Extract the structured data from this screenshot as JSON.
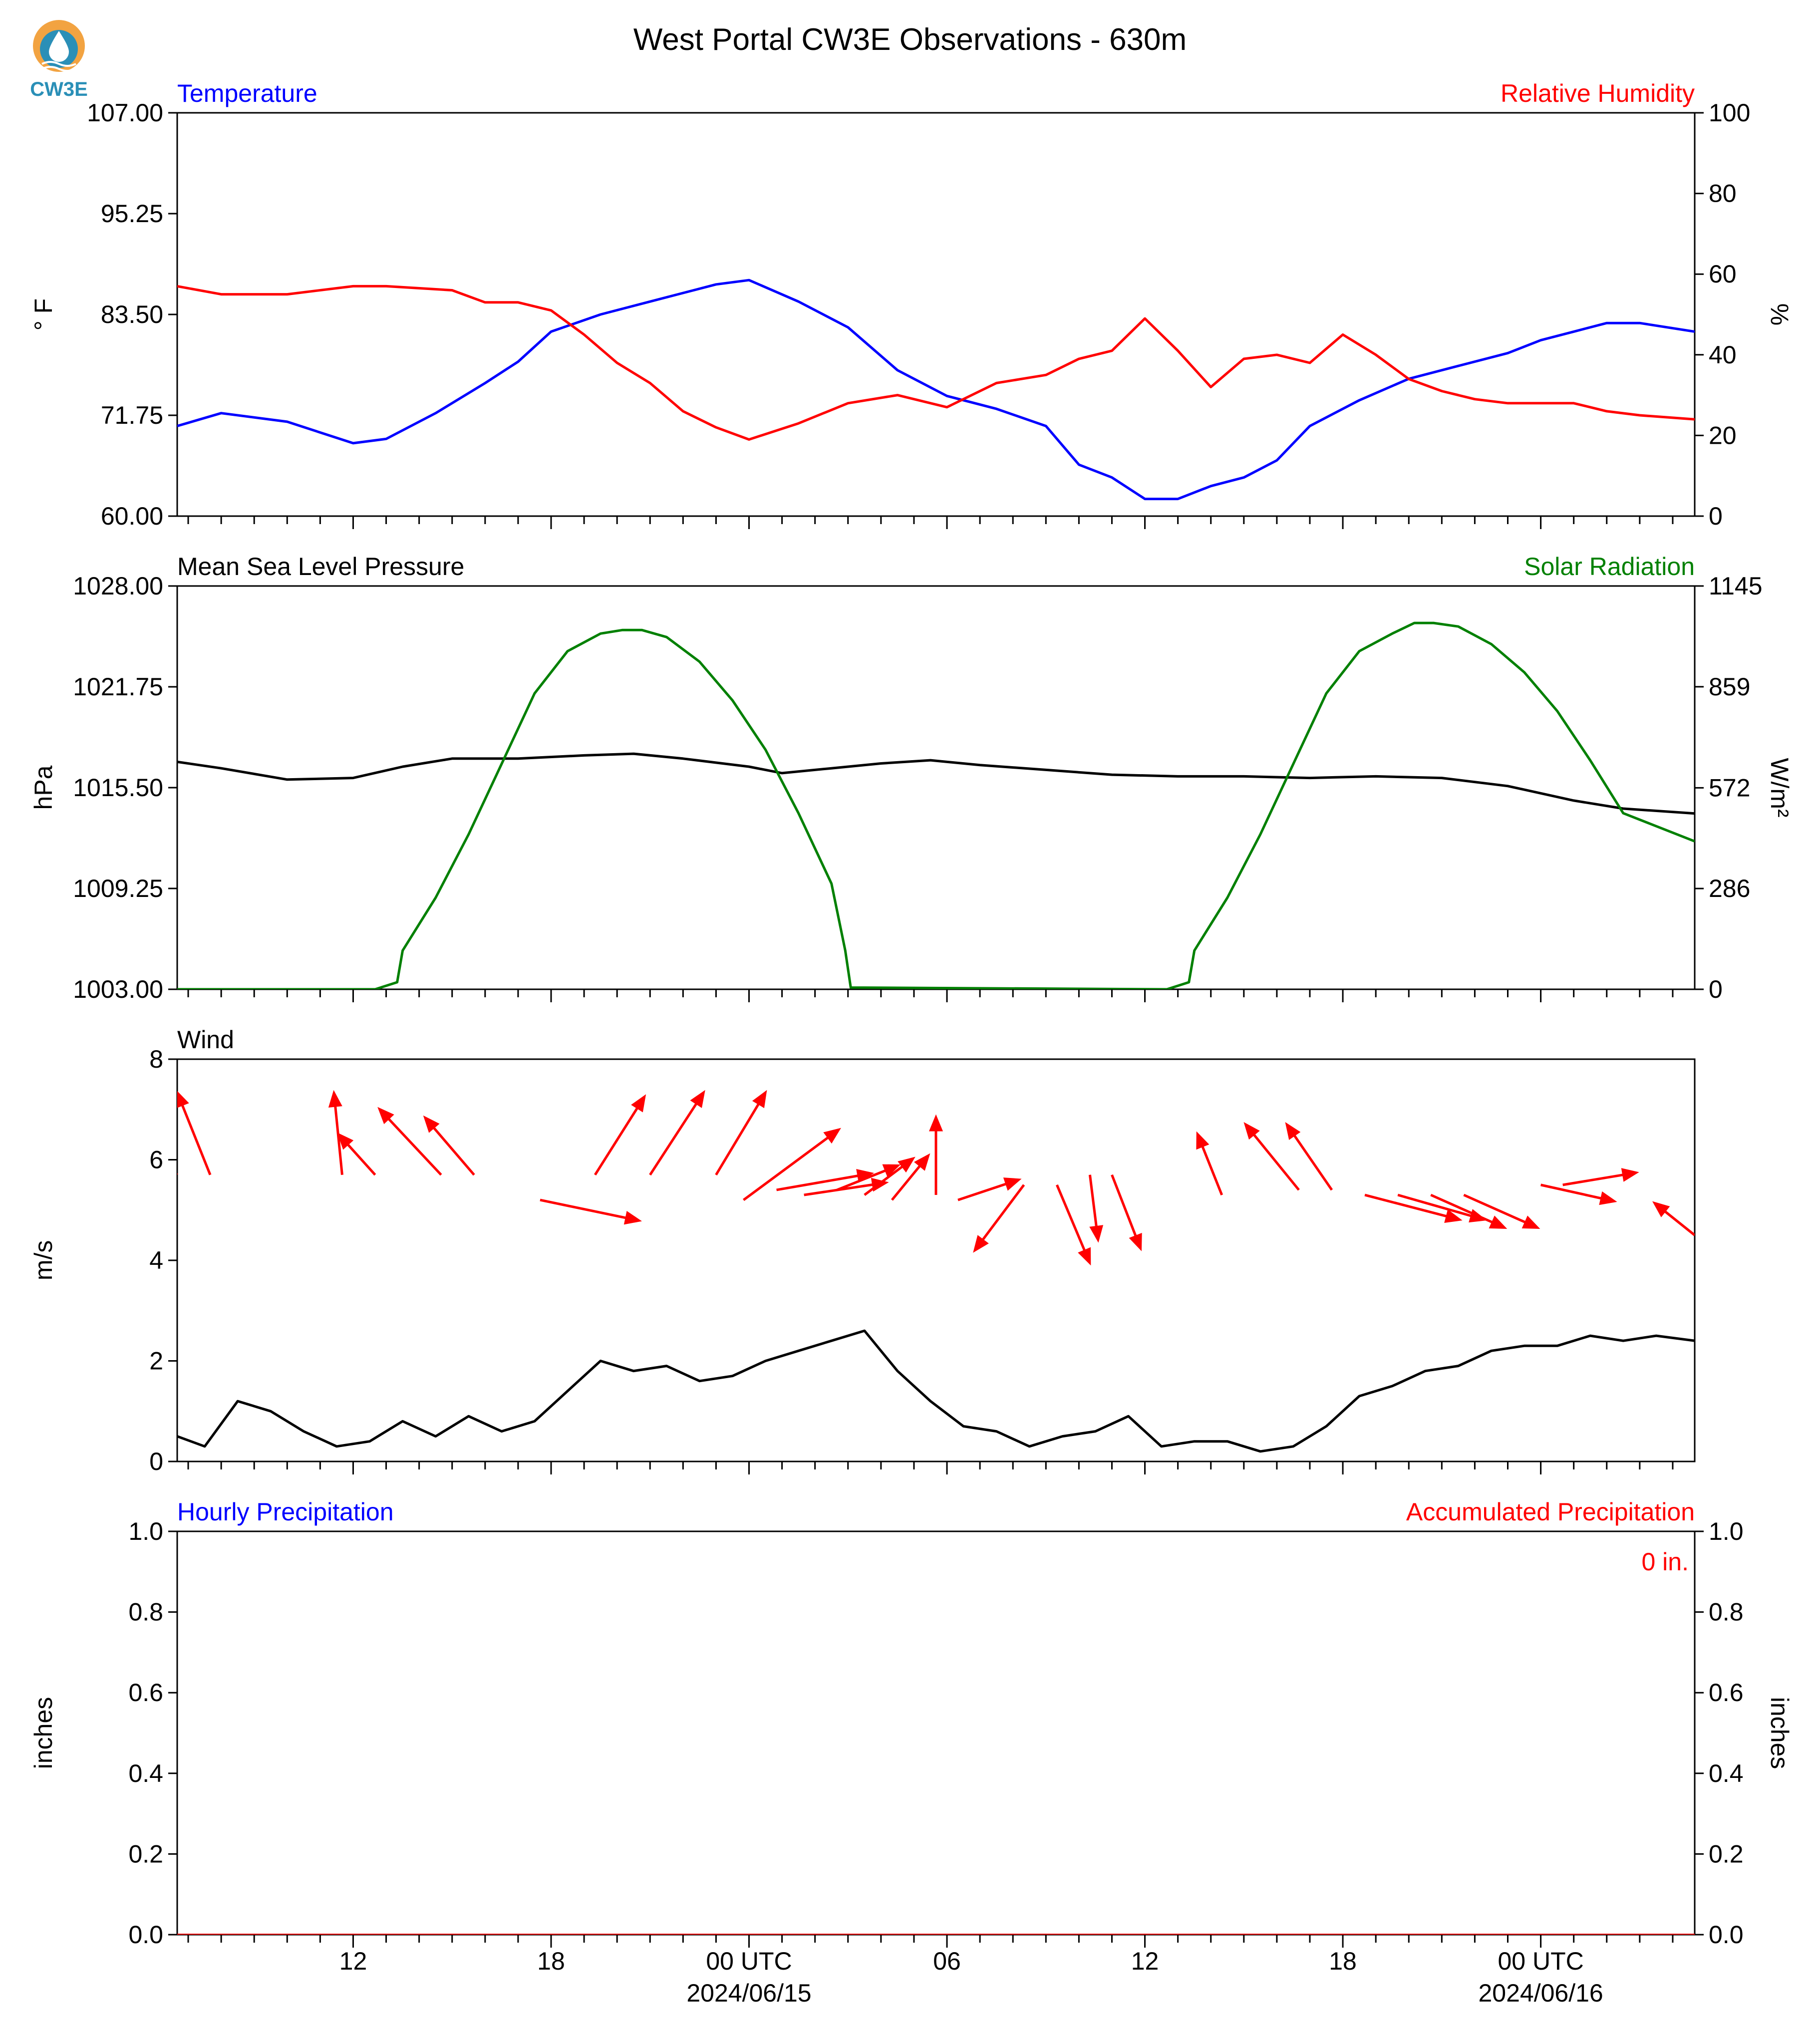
{
  "title": "West Portal CW3E Observations - 630m",
  "logo": {
    "label": "CW3E",
    "icon": "water-drop-sun-icon",
    "colors": [
      "#f2a341",
      "#2a8fb7"
    ]
  },
  "colors": {
    "temperature": "#0000ff",
    "humidity": "#ff0000",
    "pressure": "#000000",
    "solar": "#008000",
    "wind_arrow": "#ff0000",
    "wind_speed": "#000000",
    "hourly_precip": "#0000ff",
    "accum_precip": "#ff0000"
  },
  "x_axis": {
    "start": "2024-06-14T06:40Z",
    "end": "2024-06-16T04:40Z",
    "major_ticks": [
      {
        "t": "2024-06-14T12:00Z",
        "label": "12",
        "date": ""
      },
      {
        "t": "2024-06-14T18:00Z",
        "label": "18",
        "date": ""
      },
      {
        "t": "2024-06-15T00:00Z",
        "label": "00 UTC",
        "date": "2024/06/15"
      },
      {
        "t": "2024-06-15T06:00Z",
        "label": "06",
        "date": ""
      },
      {
        "t": "2024-06-15T12:00Z",
        "label": "12",
        "date": ""
      },
      {
        "t": "2024-06-15T18:00Z",
        "label": "18",
        "date": ""
      },
      {
        "t": "2024-06-16T00:00Z",
        "label": "00 UTC",
        "date": "2024/06/16"
      }
    ]
  },
  "chart_data": [
    {
      "type": "line",
      "panel": "temperature-humidity",
      "left_title": "Temperature",
      "right_title": "Relative Humidity",
      "ylabel": "° F",
      "ylabel_right": "%",
      "ylim": [
        60.0,
        107.0
      ],
      "ylim_right": [
        0,
        100
      ],
      "yticks": [
        "60.00",
        "71.75",
        "83.50",
        "95.25",
        "107.00"
      ],
      "yticks_right": [
        "0",
        "20",
        "40",
        "60",
        "80",
        "100"
      ],
      "series": [
        {
          "name": "Temperature",
          "axis": "left",
          "color": "#0000ff",
          "x": [
            "2024-06-14T06:40Z",
            "2024-06-14T08:00Z",
            "2024-06-14T10:00Z",
            "2024-06-14T12:00Z",
            "2024-06-14T13:00Z",
            "2024-06-14T14:30Z",
            "2024-06-14T16:00Z",
            "2024-06-14T17:00Z",
            "2024-06-14T18:00Z",
            "2024-06-14T19:30Z",
            "2024-06-14T21:00Z",
            "2024-06-14T22:00Z",
            "2024-06-14T23:00Z",
            "2024-06-15T00:00Z",
            "2024-06-15T01:30Z",
            "2024-06-15T03:00Z",
            "2024-06-15T04:30Z",
            "2024-06-15T06:00Z",
            "2024-06-15T07:30Z",
            "2024-06-15T09:00Z",
            "2024-06-15T10:00Z",
            "2024-06-15T11:00Z",
            "2024-06-15T12:00Z",
            "2024-06-15T13:00Z",
            "2024-06-15T14:00Z",
            "2024-06-15T15:00Z",
            "2024-06-15T16:00Z",
            "2024-06-15T17:00Z",
            "2024-06-15T18:30Z",
            "2024-06-15T20:00Z",
            "2024-06-15T21:30Z",
            "2024-06-15T23:00Z",
            "2024-06-16T00:00Z",
            "2024-06-16T01:00Z",
            "2024-06-16T02:00Z",
            "2024-06-16T03:00Z",
            "2024-06-16T04:40Z"
          ],
          "values": [
            70.5,
            72,
            71,
            68.5,
            69,
            72,
            75.5,
            78,
            81.5,
            83.5,
            85,
            86,
            87,
            87.5,
            85,
            82,
            77,
            74,
            72.5,
            70.5,
            66,
            64.5,
            62,
            62,
            63.5,
            64.5,
            66.5,
            70.5,
            73.5,
            76,
            77.5,
            79,
            80.5,
            81.5,
            82.5,
            82.5,
            81.5
          ]
        },
        {
          "name": "Relative Humidity",
          "axis": "right",
          "color": "#ff0000",
          "x": [
            "2024-06-14T06:40Z",
            "2024-06-14T08:00Z",
            "2024-06-14T10:00Z",
            "2024-06-14T12:00Z",
            "2024-06-14T13:00Z",
            "2024-06-14T15:00Z",
            "2024-06-14T16:00Z",
            "2024-06-14T17:00Z",
            "2024-06-14T18:00Z",
            "2024-06-14T19:00Z",
            "2024-06-14T20:00Z",
            "2024-06-14T21:00Z",
            "2024-06-14T22:00Z",
            "2024-06-14T23:00Z",
            "2024-06-15T00:00Z",
            "2024-06-15T01:30Z",
            "2024-06-15T03:00Z",
            "2024-06-15T04:30Z",
            "2024-06-15T06:00Z",
            "2024-06-15T07:30Z",
            "2024-06-15T09:00Z",
            "2024-06-15T10:00Z",
            "2024-06-15T11:00Z",
            "2024-06-15T12:00Z",
            "2024-06-15T13:00Z",
            "2024-06-15T14:00Z",
            "2024-06-15T15:00Z",
            "2024-06-15T16:00Z",
            "2024-06-15T17:00Z",
            "2024-06-15T18:00Z",
            "2024-06-15T19:00Z",
            "2024-06-15T20:00Z",
            "2024-06-15T21:00Z",
            "2024-06-15T22:00Z",
            "2024-06-15T23:00Z",
            "2024-06-16T00:00Z",
            "2024-06-16T01:00Z",
            "2024-06-16T02:00Z",
            "2024-06-16T03:00Z",
            "2024-06-16T04:40Z"
          ],
          "values": [
            57,
            55,
            55,
            57,
            57,
            56,
            53,
            53,
            51,
            45,
            38,
            33,
            26,
            22,
            19,
            23,
            28,
            30,
            27,
            33,
            35,
            39,
            41,
            49,
            41,
            32,
            39,
            40,
            38,
            45,
            40,
            34,
            31,
            29,
            28,
            28,
            28,
            26,
            25,
            24
          ]
        }
      ]
    },
    {
      "type": "line",
      "panel": "pressure-solar",
      "left_title": "Mean Sea Level Pressure",
      "right_title": "Solar Radiation",
      "ylabel": "hPa",
      "ylabel_right": "W/m²",
      "ylim": [
        1003.0,
        1028.0
      ],
      "ylim_right": [
        0,
        1145
      ],
      "yticks": [
        "1003.00",
        "1009.25",
        "1015.50",
        "1021.75",
        "1028.00"
      ],
      "yticks_right": [
        "0",
        "286",
        "572",
        "859",
        "1145"
      ],
      "series": [
        {
          "name": "Mean Sea Level Pressure",
          "axis": "left",
          "color": "#000000",
          "x": [
            "2024-06-14T06:40Z",
            "2024-06-14T08:00Z",
            "2024-06-14T10:00Z",
            "2024-06-14T12:00Z",
            "2024-06-14T13:30Z",
            "2024-06-14T15:00Z",
            "2024-06-14T17:00Z",
            "2024-06-14T19:00Z",
            "2024-06-14T20:30Z",
            "2024-06-14T22:00Z",
            "2024-06-15T00:00Z",
            "2024-06-15T01:00Z",
            "2024-06-15T02:30Z",
            "2024-06-15T04:00Z",
            "2024-06-15T05:30Z",
            "2024-06-15T07:00Z",
            "2024-06-15T09:00Z",
            "2024-06-15T11:00Z",
            "2024-06-15T13:00Z",
            "2024-06-15T15:00Z",
            "2024-06-15T17:00Z",
            "2024-06-15T19:00Z",
            "2024-06-15T21:00Z",
            "2024-06-15T23:00Z",
            "2024-06-16T01:00Z",
            "2024-06-16T02:30Z",
            "2024-06-16T04:40Z"
          ],
          "values": [
            1017.1,
            1016.7,
            1016.0,
            1016.1,
            1016.8,
            1017.3,
            1017.3,
            1017.5,
            1017.6,
            1017.3,
            1016.8,
            1016.4,
            1016.7,
            1017.0,
            1017.2,
            1016.9,
            1016.6,
            1016.3,
            1016.2,
            1016.2,
            1016.1,
            1016.2,
            1016.1,
            1015.6,
            1014.7,
            1014.2,
            1013.9
          ]
        },
        {
          "name": "Solar Radiation",
          "axis": "right",
          "color": "#008000",
          "x": [
            "2024-06-14T06:40Z",
            "2024-06-14T12:40Z",
            "2024-06-14T13:20Z",
            "2024-06-14T13:30Z",
            "2024-06-14T14:30Z",
            "2024-06-14T15:30Z",
            "2024-06-14T16:30Z",
            "2024-06-14T17:30Z",
            "2024-06-14T18:30Z",
            "2024-06-14T19:30Z",
            "2024-06-14T20:10Z",
            "2024-06-14T20:45Z",
            "2024-06-14T21:30Z",
            "2024-06-14T22:30Z",
            "2024-06-14T23:30Z",
            "2024-06-15T00:30Z",
            "2024-06-15T01:30Z",
            "2024-06-15T02:30Z",
            "2024-06-15T02:55Z",
            "2024-06-15T03:05Z",
            "2024-06-15T12:40Z",
            "2024-06-15T13:20Z",
            "2024-06-15T13:30Z",
            "2024-06-15T14:30Z",
            "2024-06-15T15:30Z",
            "2024-06-15T16:30Z",
            "2024-06-15T17:30Z",
            "2024-06-15T18:30Z",
            "2024-06-15T19:30Z",
            "2024-06-15T20:10Z",
            "2024-06-15T20:45Z",
            "2024-06-15T21:30Z",
            "2024-06-15T22:30Z",
            "2024-06-15T23:30Z",
            "2024-06-16T00:30Z",
            "2024-06-16T01:30Z",
            "2024-06-16T02:30Z",
            "2024-06-16T04:40Z"
          ],
          "values": [
            0,
            0,
            20,
            110,
            260,
            440,
            640,
            840,
            960,
            1010,
            1020,
            1020,
            1000,
            930,
            820,
            680,
            500,
            300,
            110,
            5,
            0,
            20,
            110,
            260,
            440,
            640,
            840,
            960,
            1010,
            1040,
            1040,
            1030,
            980,
            900,
            790,
            650,
            500,
            420
          ]
        }
      ]
    },
    {
      "type": "line",
      "panel": "wind",
      "left_title": "Wind",
      "ylabel": "m/s",
      "ylim": [
        0,
        8
      ],
      "yticks": [
        "0",
        "2",
        "4",
        "6",
        "8"
      ],
      "series": [
        {
          "name": "Wind",
          "axis": "left",
          "color": "#000000",
          "x": [
            "2024-06-14T06:40Z",
            "2024-06-14T07:30Z",
            "2024-06-14T08:30Z",
            "2024-06-14T09:30Z",
            "2024-06-14T10:30Z",
            "2024-06-14T11:30Z",
            "2024-06-14T12:30Z",
            "2024-06-14T13:30Z",
            "2024-06-14T14:30Z",
            "2024-06-14T15:30Z",
            "2024-06-14T16:30Z",
            "2024-06-14T17:30Z",
            "2024-06-14T18:30Z",
            "2024-06-14T19:30Z",
            "2024-06-14T20:30Z",
            "2024-06-14T21:30Z",
            "2024-06-14T22:30Z",
            "2024-06-14T23:30Z",
            "2024-06-15T00:30Z",
            "2024-06-15T01:30Z",
            "2024-06-15T02:30Z",
            "2024-06-15T03:30Z",
            "2024-06-15T04:30Z",
            "2024-06-15T05:30Z",
            "2024-06-15T06:30Z",
            "2024-06-15T07:30Z",
            "2024-06-15T08:30Z",
            "2024-06-15T09:30Z",
            "2024-06-15T10:30Z",
            "2024-06-15T11:30Z",
            "2024-06-15T12:30Z",
            "2024-06-15T13:30Z",
            "2024-06-15T14:30Z",
            "2024-06-15T15:30Z",
            "2024-06-15T16:30Z",
            "2024-06-15T17:30Z",
            "2024-06-15T18:30Z",
            "2024-06-15T19:30Z",
            "2024-06-15T20:30Z",
            "2024-06-15T21:30Z",
            "2024-06-15T22:30Z",
            "2024-06-15T23:30Z",
            "2024-06-16T00:30Z",
            "2024-06-16T01:30Z",
            "2024-06-16T02:30Z",
            "2024-06-16T03:30Z",
            "2024-06-16T04:40Z"
          ],
          "values": [
            0.5,
            0.3,
            1.2,
            1.0,
            0.6,
            0.3,
            0.4,
            0.8,
            0.5,
            0.9,
            0.6,
            0.8,
            1.4,
            2.0,
            1.8,
            1.9,
            1.6,
            1.7,
            2.0,
            2.2,
            2.4,
            2.6,
            1.8,
            1.2,
            0.7,
            0.6,
            0.3,
            0.5,
            0.6,
            0.9,
            0.3,
            0.4,
            0.4,
            0.2,
            0.3,
            0.7,
            1.3,
            1.5,
            1.8,
            1.9,
            2.2,
            2.3,
            2.3,
            2.5,
            2.4,
            2.5,
            2.4
          ]
        }
      ],
      "barbs": {
        "x": [
          "2024-06-14T06:40Z",
          "2024-06-14T07:40Z",
          "2024-06-14T11:40Z",
          "2024-06-14T12:40Z",
          "2024-06-14T14:40Z",
          "2024-06-14T15:40Z",
          "2024-06-14T17:40Z",
          "2024-06-14T19:20Z",
          "2024-06-14T21:00Z",
          "2024-06-14T23:00Z",
          "2024-06-14T23:50Z",
          "2024-06-15T00:50Z",
          "2024-06-15T01:40Z",
          "2024-06-15T02:40Z",
          "2024-06-15T03:30Z",
          "2024-06-15T04:20Z",
          "2024-06-15T05:40Z",
          "2024-06-15T06:20Z",
          "2024-06-15T08:20Z",
          "2024-06-15T09:20Z",
          "2024-06-15T10:20Z",
          "2024-06-15T11:00Z",
          "2024-06-15T14:20Z",
          "2024-06-15T16:40Z",
          "2024-06-15T17:40Z",
          "2024-06-15T18:40Z",
          "2024-06-15T19:40Z",
          "2024-06-15T20:40Z",
          "2024-06-15T21:40Z",
          "2024-06-16T00:00Z",
          "2024-06-16T00:40Z",
          "2024-06-16T04:40Z"
        ],
        "y": [
          5.7,
          5.7,
          5.7,
          5.7,
          5.7,
          5.7,
          5.2,
          5.7,
          5.7,
          5.7,
          5.2,
          5.4,
          5.3,
          5.4,
          5.3,
          5.2,
          5.3,
          5.2,
          5.5,
          5.5,
          5.7,
          5.7,
          5.3,
          5.4,
          5.4,
          5.3,
          5.3,
          5.3,
          5.3,
          5.5,
          5.5,
          4.5
        ],
        "u": [
          -1.2,
          -0.8,
          -0.2,
          -0.9,
          -1.5,
          -1.2,
          2.4,
          1.2,
          1.3,
          1.2,
          2.3,
          2.3,
          2.0,
          1.5,
          1.2,
          0.9,
          0.0,
          1.5,
          -1.2,
          0.8,
          0.2,
          0.7,
          -0.6,
          -1.3,
          -1.1,
          2.3,
          2.1,
          1.8,
          1.8,
          1.8,
          1.8,
          -1.0
        ],
        "v": [
          1.0,
          2.0,
          2.0,
          1.0,
          1.6,
          1.4,
          -0.5,
          1.9,
          2.0,
          2.0,
          1.7,
          0.4,
          0.3,
          0.6,
          0.9,
          1.1,
          1.9,
          0.5,
          -1.6,
          -1.9,
          -1.6,
          -1.8,
          1.5,
          1.6,
          1.6,
          -0.6,
          -0.6,
          -0.8,
          -0.8,
          -0.4,
          0.3,
          0.8
        ]
      }
    },
    {
      "type": "line",
      "panel": "precipitation",
      "left_title": "Hourly Precipitation",
      "right_title": "Accumulated Precipitation",
      "ylabel": "inches",
      "ylabel_right": "inches",
      "ylim": [
        0,
        1.0
      ],
      "ylim_right": [
        0,
        1.0
      ],
      "yticks": [
        "0.0",
        "0.2",
        "0.4",
        "0.6",
        "0.8",
        "1.0"
      ],
      "yticks_right": [
        "0.0",
        "0.2",
        "0.4",
        "0.6",
        "0.8",
        "1.0"
      ],
      "annotation": "0 in.",
      "series": [
        {
          "name": "Hourly Precipitation",
          "axis": "left",
          "color": "#0000ff",
          "x": [
            "2024-06-14T06:40Z",
            "2024-06-16T04:40Z"
          ],
          "values": [
            0,
            0
          ]
        },
        {
          "name": "Accumulated Precipitation",
          "axis": "right",
          "color": "#ff0000",
          "x": [
            "2024-06-14T06:40Z",
            "2024-06-16T04:40Z"
          ],
          "values": [
            0,
            0
          ]
        }
      ]
    }
  ]
}
